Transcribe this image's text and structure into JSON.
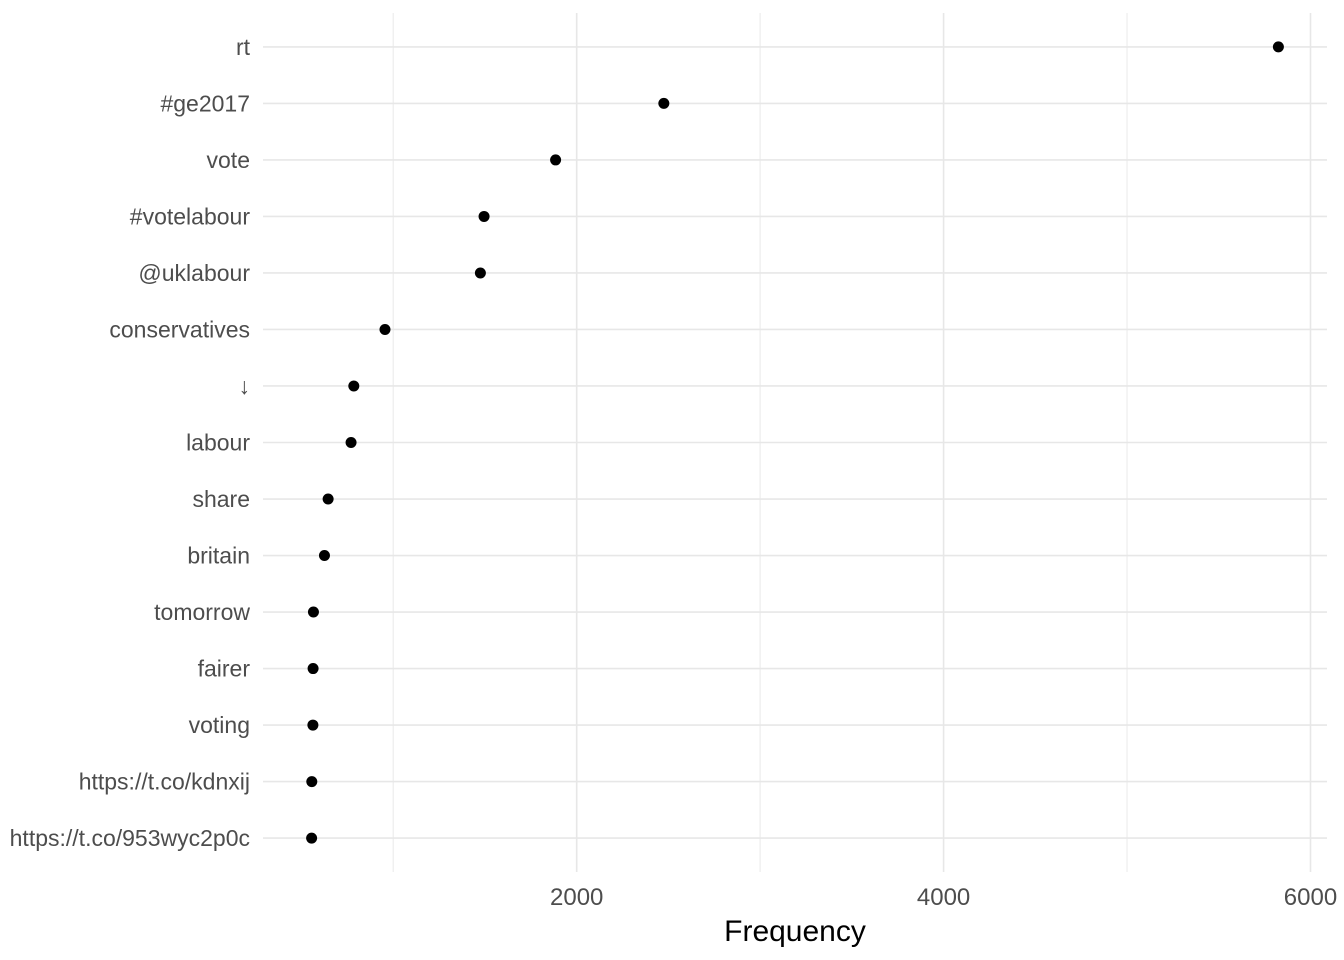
{
  "chart_data": {
    "type": "scatter",
    "variant": "cleveland-dot-plot",
    "orientation": "horizontal",
    "title": "",
    "xlabel": "Frequency",
    "ylabel": "",
    "categories": [
      "rt",
      "#ge2017",
      "vote",
      "#votelabour",
      "@uklabour",
      "conservatives",
      "↓",
      "labour",
      "share",
      "britain",
      "tomorrow",
      "fairer",
      "voting",
      "https://t.co/kdnxij",
      "https://t.co/953wyc2p0c"
    ],
    "values": [
      5825,
      2475,
      1885,
      1495,
      1475,
      955,
      785,
      770,
      645,
      625,
      565,
      563,
      562,
      556,
      555
    ],
    "xlim": [
      290,
      6090
    ],
    "x_major_ticks": [
      2000,
      4000,
      6000
    ],
    "x_minor_ticks": [
      1000,
      3000,
      5000
    ],
    "grid": "major-and-minor",
    "legend": "none",
    "colors": {
      "point": "#000000",
      "grid_major": "#e7e7e7",
      "grid_minor": "#ededed",
      "axis_text": "#4d4d4d",
      "axis_title": "#000000",
      "background": "#ffffff"
    }
  }
}
